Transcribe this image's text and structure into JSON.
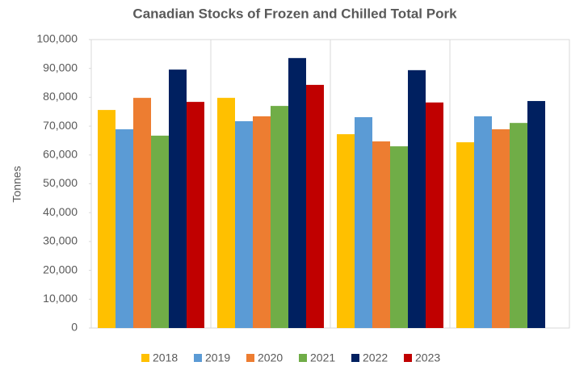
{
  "chart_data": {
    "type": "bar",
    "title": "Canadian Stocks of Frozen and Chilled Total Pork",
    "y_label": "Tonnes",
    "categories": [
      null,
      null,
      null,
      null
    ],
    "series": [
      {
        "name": "2018",
        "color": "#FFC000",
        "values": [
          75600,
          79800,
          67200,
          64400
        ]
      },
      {
        "name": "2019",
        "color": "#5B9BD5",
        "values": [
          68900,
          71700,
          73100,
          73400
        ]
      },
      {
        "name": "2020",
        "color": "#ED7D31",
        "values": [
          79800,
          73400,
          64700,
          68900
        ]
      },
      {
        "name": "2021",
        "color": "#70AD47",
        "values": [
          66700,
          77000,
          63000,
          71100
        ]
      },
      {
        "name": "2022",
        "color": "#002060",
        "values": [
          89600,
          93600,
          89400,
          78700
        ]
      },
      {
        "name": "2023",
        "color": "#C00000",
        "values": [
          78400,
          84300,
          78200,
          null
        ]
      }
    ],
    "ylim": [
      0,
      100000
    ],
    "yticks": [
      0,
      {
        "value": 10000,
        "label": "10,000"
      },
      {
        "value": 20000,
        "label": "20,000"
      },
      {
        "value": 30000,
        "label": "30,000"
      },
      {
        "value": 40000,
        "label": "40,000"
      },
      {
        "value": 50000,
        "label": "50,000"
      },
      {
        "value": 60000,
        "label": "60,000"
      },
      {
        "value": 70000,
        "label": "70,000"
      },
      {
        "value": 80000,
        "label": "80,000"
      },
      {
        "value": 90000,
        "label": "90,000"
      },
      {
        "value": 100000,
        "label": "100,000"
      }
    ],
    "legend": "bottom"
  }
}
